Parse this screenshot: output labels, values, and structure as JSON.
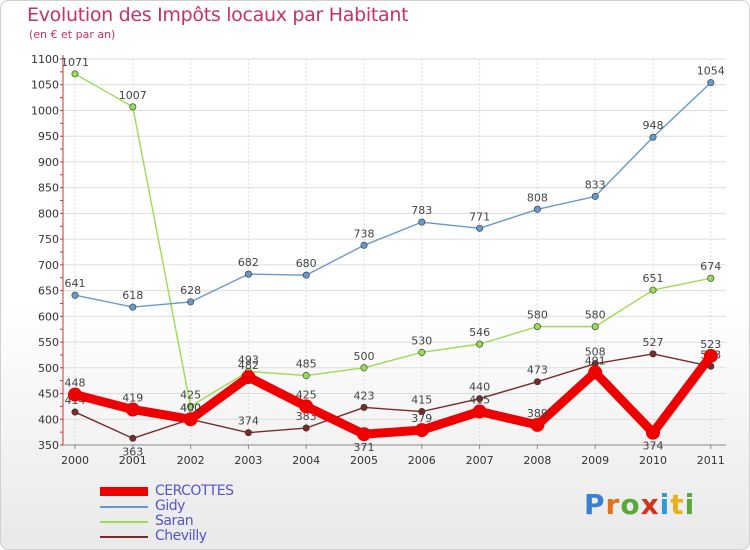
{
  "title": "Evolution des Impôts locaux par Habitant",
  "subtitle": "(en € et par an)",
  "logo_text": "Proxiti",
  "chart_data": {
    "type": "line",
    "title": "Evolution des Impôts locaux par Habitant",
    "subtitle": "(en € et par an)",
    "xlabel": "",
    "ylabel": "",
    "ylim": [
      350,
      1100
    ],
    "yticks": [
      "350",
      "400",
      "450",
      "500",
      "550",
      "600",
      "650",
      "700",
      "750",
      "800",
      "850",
      "900",
      "950",
      "1000",
      "1050",
      "1100"
    ],
    "ytick_values": [
      350,
      400,
      450,
      500,
      550,
      600,
      650,
      700,
      750,
      800,
      850,
      900,
      950,
      1000,
      1050,
      1100
    ],
    "categories": [
      "2000",
      "2001",
      "2002",
      "2003",
      "2004",
      "2005",
      "2006",
      "2007",
      "2008",
      "2009",
      "2010",
      "2011"
    ],
    "legend_position": "bottom-left",
    "series": [
      {
        "name": "Chevilly",
        "color": "#7a2a2a",
        "values": [
          414,
          363,
          400,
          374,
          383,
          423,
          415,
          440,
          473,
          508,
          527,
          503
        ]
      },
      {
        "name": "Saran",
        "color": "#99dd55",
        "values": [
          1071,
          1007,
          425,
          493,
          485,
          500,
          530,
          546,
          580,
          580,
          651,
          674
        ]
      },
      {
        "name": "Gidy",
        "color": "#6699cc",
        "values": [
          641,
          618,
          628,
          682,
          680,
          738,
          783,
          771,
          808,
          833,
          948,
          1054
        ]
      },
      {
        "name": "CERCOTTES",
        "color": "#ee0000",
        "values": [
          448,
          419,
          400,
          482,
          425,
          371,
          379,
          415,
          389,
          491,
          374,
          523
        ]
      }
    ],
    "legend": [
      "CERCOTTES",
      "Gidy",
      "Saran",
      "Chevilly"
    ]
  },
  "legend_items": [
    {
      "label": "CERCOTTES",
      "color": "#ee0000"
    },
    {
      "label": "Gidy",
      "color": "#6699cc"
    },
    {
      "label": "Saran",
      "color": "#99dd55"
    },
    {
      "label": "Chevilly",
      "color": "#7a2a2a"
    }
  ]
}
